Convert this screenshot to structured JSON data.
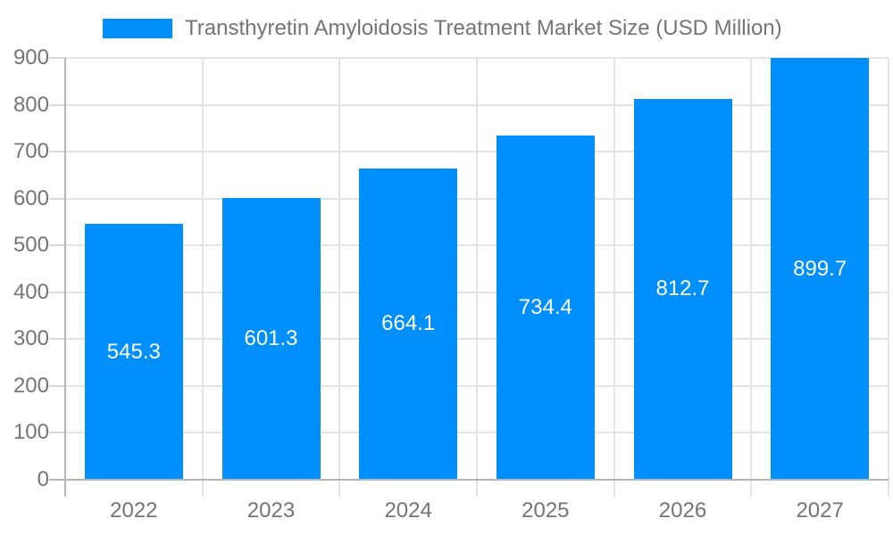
{
  "chart_data": {
    "type": "bar",
    "title": "Transthyretin Amyloidosis Treatment Market Size (USD Million)",
    "categories": [
      "2022",
      "2023",
      "2024",
      "2025",
      "2026",
      "2027"
    ],
    "values": [
      545.3,
      601.3,
      664.1,
      734.4,
      812.7,
      899.7
    ],
    "series": [
      {
        "name": "Transthyretin Amyloidosis Treatment Market Size (USD Million)",
        "values": [
          545.3,
          601.3,
          664.1,
          734.4,
          812.7,
          899.7
        ]
      }
    ],
    "xlabel": "",
    "ylabel": "",
    "ylim": [
      0,
      900
    ],
    "y_ticks": [
      "0",
      "100",
      "200",
      "300",
      "400",
      "500",
      "600",
      "700",
      "800",
      "900"
    ],
    "grid": true,
    "legend_position": "top-left",
    "value_label_position": "inside-center",
    "colors": {
      "bar": "#008FFB",
      "grid": "#e4e4e4",
      "axis": "#b5b5b5",
      "tick": "#d9d9d9",
      "text": "#757575",
      "value_text": "#ffffff",
      "background": "#ffffff"
    }
  }
}
